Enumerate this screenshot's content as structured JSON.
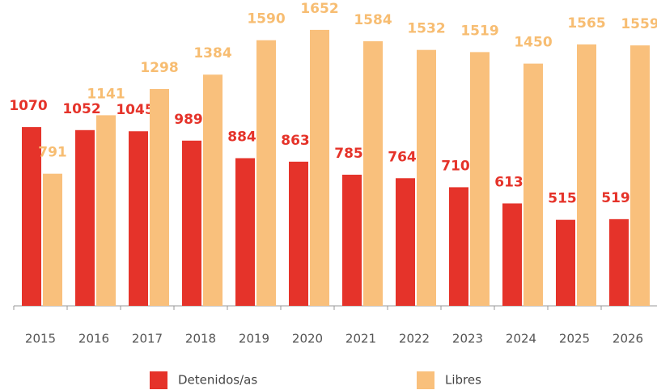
{
  "chart_data": {
    "type": "bar",
    "categories": [
      "2015",
      "2016",
      "2017",
      "2018",
      "2019",
      "2020",
      "2021",
      "2022",
      "2023",
      "2024",
      "2025",
      "2026"
    ],
    "series": [
      {
        "name": "Detenidos/as",
        "color": "#e5332a",
        "label_color": "#e5332a",
        "values": [
          1070,
          1052,
          1045,
          989,
          884,
          863,
          785,
          764,
          710,
          613,
          515,
          519
        ]
      },
      {
        "name": "Libres",
        "color": "#f9c07c",
        "label_color": "#f7bd72",
        "values": [
          791,
          1141,
          1298,
          1384,
          1590,
          1652,
          1584,
          1532,
          1519,
          1450,
          1565,
          1559
        ]
      }
    ],
    "ylim": [
      0,
      1700
    ]
  }
}
